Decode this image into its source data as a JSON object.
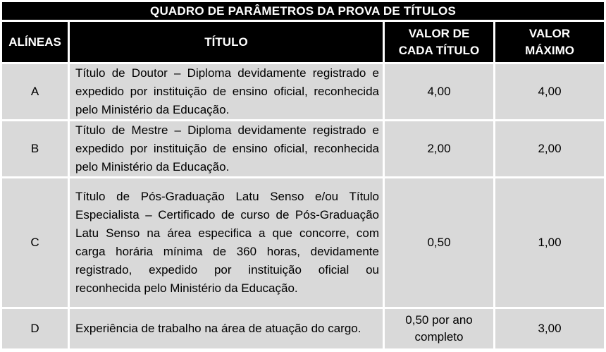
{
  "table": {
    "title": "QUADRO DE PARÂMETROS DA PROVA DE TÍTULOS",
    "columns": {
      "alineas": "ALÍNEAS",
      "titulo": "TÍTULO",
      "valor_cada_titulo": "VALOR DE\nCADA TÍTULO",
      "valor_maximo": "VALOR\nMÁXIMO"
    },
    "rows": [
      {
        "alinea": "A",
        "titulo": "Título de Doutor – Diploma devidamente registrado e expedido por instituição de ensino oficial, reconhecida pelo Ministério da Educação.",
        "valor_cada_titulo": "4,00",
        "valor_maximo": "4,00"
      },
      {
        "alinea": "B",
        "titulo": "Título de Mestre – Diploma devidamente registrado e expedido por instituição de ensino oficial, reconhecida pelo Ministério da Educação.",
        "valor_cada_titulo": "2,00",
        "valor_maximo": "2,00"
      },
      {
        "alinea": "C",
        "titulo": "Título de Pós-Graduação Latu Senso e/ou Título Especialista – Certificado de curso de Pós-Graduação Latu Senso na área especifica a que concorre, com carga horária mínima de 360 horas, devidamente registrado, expedido por instituição oficial ou reconhecida pelo Ministério da Educação.",
        "valor_cada_titulo": "0,50",
        "valor_maximo": "1,00"
      },
      {
        "alinea": "D",
        "titulo": "Experiência de trabalho na área de atuação do cargo.",
        "valor_cada_titulo": "0,50 por ano completo",
        "valor_maximo": "3,00"
      }
    ],
    "colors": {
      "header_bg": "#000000",
      "header_text": "#ffffff",
      "cell_bg": "#d9d9d9",
      "border": "#ffffff",
      "text": "#000000"
    }
  }
}
